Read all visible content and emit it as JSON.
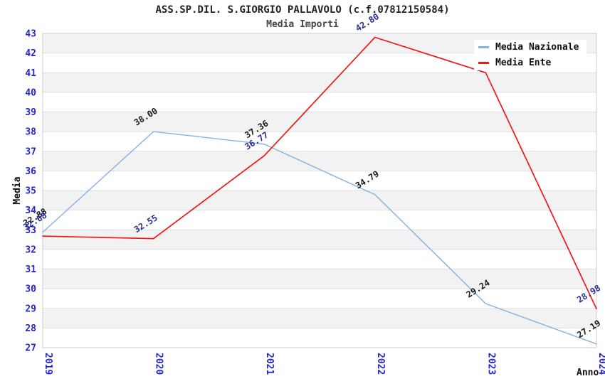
{
  "header": {
    "title": "ASS.SP.DIL. S.GIORGIO PALLAVOLO (c.f.07812150584)",
    "subtitle": "Media Importi"
  },
  "chart_data": {
    "type": "line",
    "title": "ASS.SP.DIL. S.GIORGIO PALLAVOLO (c.f.07812150584)",
    "subtitle": "Media Importi",
    "xlabel": "Anno",
    "ylabel": "Media",
    "categories": [
      "2019",
      "2020",
      "2021",
      "2022",
      "2023",
      "2024"
    ],
    "series": [
      {
        "name": "Media Nazionale",
        "color": "#7FB2E5",
        "values": [
          32.88,
          38.0,
          37.36,
          34.79,
          29.24,
          27.19
        ],
        "point_labels": [
          "32.88",
          "38.00",
          "37.36",
          "34.79",
          "29.24",
          "27.19"
        ],
        "label_color": "#1A1A1A",
        "stroke_width": 1.4
      },
      {
        "name": "Media Ente",
        "color": "#F21616",
        "values": [
          32.68,
          32.55,
          36.77,
          42.8,
          41.0,
          28.98
        ],
        "point_labels": [
          "32.68",
          "32.55",
          "36.77",
          "42.80",
          "",
          "28.98"
        ],
        "label_color": "#2B2B99",
        "stroke_width": 1.7
      }
    ],
    "ylim": [
      27,
      43
    ],
    "ytick_step": 1,
    "grid": true,
    "banded_background": true,
    "band_color": "#F2F2F2",
    "gridline_color": "#E0E0E0",
    "border_color": "#CCCCCC",
    "tick_label_color": "#2525CD",
    "legend_position": "top-right"
  },
  "legend": {
    "items": [
      {
        "label": "Media Nazionale",
        "color": "#7FB2E5"
      },
      {
        "label": "Media Ente",
        "color": "#F21616"
      }
    ]
  }
}
